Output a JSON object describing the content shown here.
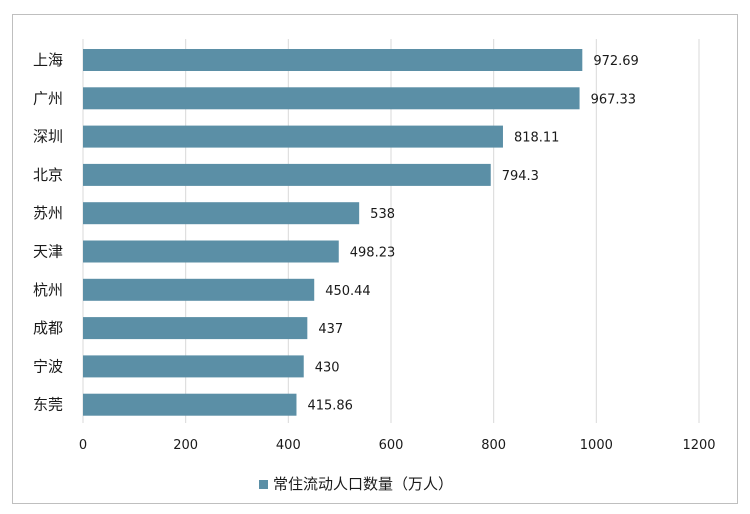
{
  "chart_data": {
    "type": "bar",
    "orientation": "horizontal",
    "categories": [
      "上海",
      "广州",
      "深圳",
      "北京",
      "苏州",
      "天津",
      "杭州",
      "成都",
      "宁波",
      "东莞"
    ],
    "series": [
      {
        "name": "常住流动人口数量（万人）",
        "values": [
          972.69,
          967.33,
          818.11,
          794.3,
          538,
          498.23,
          450.44,
          437,
          430,
          415.86
        ],
        "value_labels": [
          "972.69",
          "967.33",
          "818.11",
          "794.3",
          "538",
          "498.23",
          "450.44",
          "437",
          "430",
          "415.86"
        ],
        "color": "#5b8fa6"
      }
    ],
    "xlim": [
      0,
      1200
    ],
    "x_ticks": [
      0,
      200,
      400,
      600,
      800,
      1000,
      1200
    ],
    "x_tick_labels": [
      "0",
      "200",
      "400",
      "600",
      "800",
      "1000",
      "1200"
    ],
    "grid": "vertical",
    "grid_color": "#d9d9d9",
    "legend_position": "bottom",
    "title": "",
    "xlabel": "",
    "ylabel": ""
  }
}
